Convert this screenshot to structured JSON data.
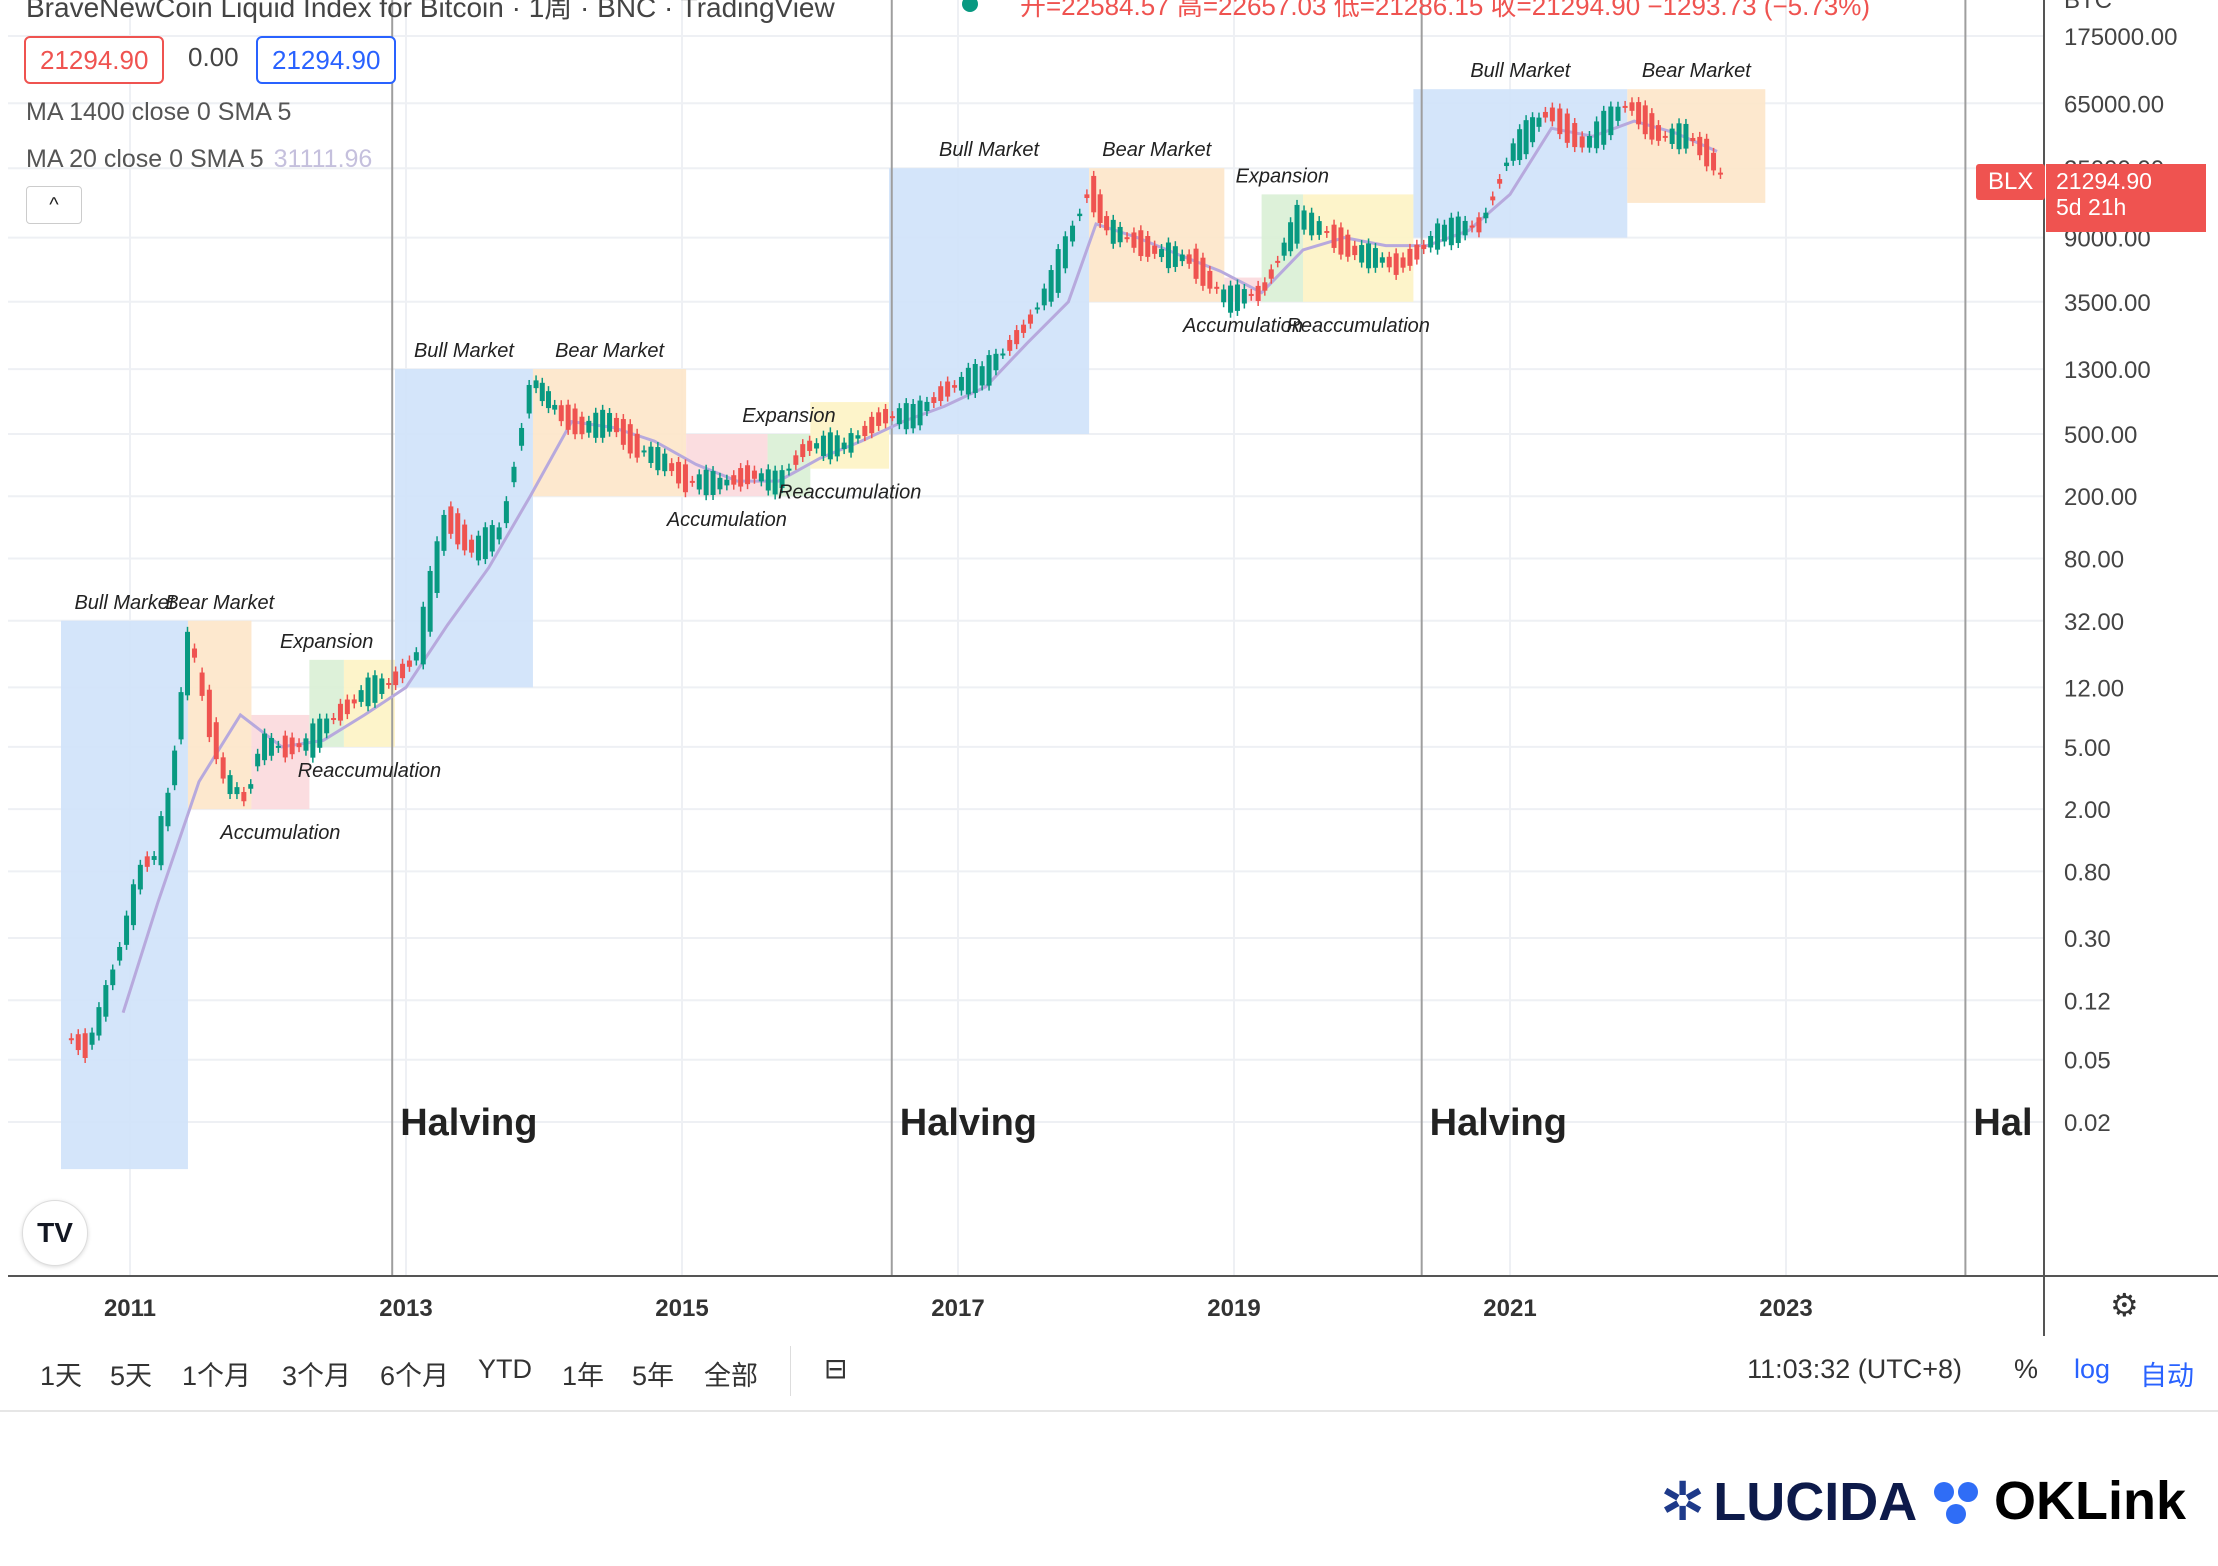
{
  "header": {
    "title": "BraveNewCoin Liquid Index for Bitcoin · 1周 · BNC · TradingView",
    "ohlc": "开=22584.57 高=22657.03 低=21286.15 收=21294.90 −1293.73 (−5.73%)",
    "price_red": "21294.90",
    "price_change": "0.00",
    "price_blue": "21294.90",
    "ma1_label": "MA 1400 close 0 SMA 5",
    "ma2_label": "MA 20 close 0 SMA 5",
    "ma2_value": "31111.96",
    "collapse_icon": "^"
  },
  "price_axis": {
    "currency": "BTC",
    "blx_label": "BLX",
    "last_price": "21294.90",
    "countdown": "5d 21h"
  },
  "chart_data": {
    "type": "line",
    "title": "BraveNewCoin Liquid Index for Bitcoin",
    "scale": "log",
    "ylim": [
      0.01,
      250000
    ],
    "y_ticks": [
      "175000.00",
      "65000.00",
      "25000.00",
      "9000.00",
      "3500.00",
      "1300.00",
      "500.00",
      "200.00",
      "80.00",
      "32.00",
      "12.00",
      "5.00",
      "2.00",
      "0.80",
      "0.30",
      "0.12",
      "0.05",
      "0.02"
    ],
    "x_ticks": [
      "2011",
      "2013",
      "2015",
      "2017",
      "2019",
      "2021",
      "2023"
    ],
    "series": [
      {
        "name": "",
        "x": [
          2010.55,
          2010.7,
          2010.8,
          2010.9,
          2011.0,
          2011.1,
          2011.2,
          2011.3,
          2011.44,
          2011.55,
          2011.7,
          2011.85,
          2011.95,
          2012.1,
          2012.3,
          2012.5,
          2012.7,
          2012.9,
          2013.1,
          2013.3,
          2013.5,
          2013.7,
          2013.92,
          2014.1,
          2014.3,
          2014.5,
          2014.7,
          2014.9,
          2015.05,
          2015.3,
          2015.5,
          2015.7,
          2015.9,
          2016.2,
          2016.45,
          2016.7,
          2016.9,
          2017.2,
          2017.5,
          2017.7,
          2017.96,
          2018.1,
          2018.3,
          2018.5,
          2018.7,
          2018.95,
          2019.2,
          2019.48,
          2019.7,
          2019.9,
          2020.2,
          2020.5,
          2020.8,
          2021.0,
          2021.28,
          2021.55,
          2021.86,
          2022.1,
          2022.3,
          2022.45,
          2022.55
        ],
        "values": [
          0.07,
          0.06,
          0.1,
          0.2,
          0.4,
          0.9,
          1.0,
          2.5,
          25,
          10,
          3,
          2.3,
          5,
          5,
          5.2,
          8,
          11,
          13,
          20,
          150,
          90,
          120,
          1100,
          700,
          550,
          600,
          400,
          320,
          250,
          240,
          280,
          240,
          420,
          420,
          650,
          650,
          950,
          1200,
          2500,
          4800,
          19000,
          10000,
          8500,
          7000,
          6500,
          3600,
          4000,
          12000,
          9500,
          7200,
          6000,
          9500,
          11000,
          30000,
          58000,
          35000,
          65000,
          40000,
          40000,
          30000,
          21294.9
        ]
      },
      {
        "name": "",
        "x": [
          2010.95,
          2011.2,
          2011.5,
          2011.8,
          2012.1,
          2012.4,
          2012.7,
          2013.0,
          2013.3,
          2013.6,
          2013.9,
          2014.2,
          2014.5,
          2014.8,
          2015.1,
          2015.4,
          2015.7,
          2016.0,
          2016.3,
          2016.6,
          2016.9,
          2017.2,
          2017.5,
          2017.8,
          2018.0,
          2018.3,
          2018.6,
          2018.9,
          2019.2,
          2019.5,
          2019.8,
          2020.1,
          2020.4,
          2020.7,
          2021.0,
          2021.3,
          2021.6,
          2021.9,
          2022.2,
          2022.5
        ],
        "values": [
          0.1,
          0.5,
          3,
          8,
          5,
          5.5,
          8,
          12,
          30,
          70,
          200,
          600,
          550,
          450,
          320,
          250,
          250,
          350,
          450,
          600,
          750,
          1000,
          1900,
          3500,
          11000,
          9000,
          7000,
          5500,
          4000,
          7500,
          9000,
          8000,
          8000,
          10000,
          17000,
          45000,
          40000,
          50000,
          42000,
          32000
        ]
      }
    ],
    "phases": [
      {
        "label": "Bull Market",
        "start": 2010.5,
        "end": 2011.42,
        "low": 0.01,
        "high": 32,
        "color": "#cfe2fa"
      },
      {
        "label": "Bear Market",
        "start": 2011.42,
        "end": 2011.88,
        "low": 2.0,
        "high": 32,
        "color": "#fde6c9"
      },
      {
        "label": "Accumulation",
        "start": 2011.88,
        "end": 2012.3,
        "low": 2.0,
        "high": 8,
        "color": "#fbd9dd"
      },
      {
        "label": "Expansion",
        "start": 2012.3,
        "end": 2012.55,
        "low": 5.0,
        "high": 18,
        "color": "#d9f0d5"
      },
      {
        "label": "Reaccumulation",
        "start": 2012.55,
        "end": 2012.92,
        "low": 5.0,
        "high": 18,
        "color": "#fdf3c4"
      },
      {
        "label": "Bull Market",
        "start": 2012.92,
        "end": 2013.92,
        "low": 12,
        "high": 1300,
        "color": "#cfe2fa"
      },
      {
        "label": "Bear Market",
        "start": 2013.92,
        "end": 2015.03,
        "low": 200,
        "high": 1300,
        "color": "#fde6c9"
      },
      {
        "label": "Accumulation",
        "start": 2015.03,
        "end": 2015.62,
        "low": 200,
        "high": 500,
        "color": "#fbd9dd"
      },
      {
        "label": "Expansion",
        "start": 2015.62,
        "end": 2015.93,
        "low": 200,
        "high": 500,
        "color": "#d9f0d5"
      },
      {
        "label": "Reaccumulation",
        "start": 2015.93,
        "end": 2016.5,
        "low": 300,
        "high": 800,
        "color": "#fdf3c4"
      },
      {
        "label": "Bull Market",
        "start": 2016.5,
        "end": 2017.95,
        "low": 500,
        "high": 25000,
        "color": "#cfe2fa"
      },
      {
        "label": "Bear Market",
        "start": 2017.95,
        "end": 2018.93,
        "low": 3500,
        "high": 25000,
        "color": "#fde6c9"
      },
      {
        "label": "Accumulation",
        "start": 2018.93,
        "end": 2019.2,
        "low": 3500,
        "high": 5000,
        "color": "#fbd9dd"
      },
      {
        "label": "Expansion",
        "start": 2019.2,
        "end": 2019.5,
        "low": 3500,
        "high": 17000,
        "color": "#d9f0d5"
      },
      {
        "label": "Reaccumulation",
        "start": 2019.5,
        "end": 2020.3,
        "low": 3500,
        "high": 17000,
        "color": "#fdf3c4"
      },
      {
        "label": "Bull Market",
        "start": 2020.3,
        "end": 2021.85,
        "low": 9000,
        "high": 80000,
        "color": "#cfe2fa"
      },
      {
        "label": "Bear Market",
        "start": 2021.85,
        "end": 2022.85,
        "low": 15000,
        "high": 80000,
        "color": "#fde6c9"
      }
    ],
    "halvings": [
      {
        "label": "Halving",
        "x": 2012.9
      },
      {
        "label": "Halving",
        "x": 2016.52
      },
      {
        "label": "Halving",
        "x": 2020.36
      },
      {
        "label": "Hal",
        "x": 2024.3
      }
    ],
    "grid": true,
    "legend": "none"
  },
  "toolbar": {
    "ranges": [
      "1天",
      "5天",
      "1个月",
      "3个月",
      "6个月",
      "YTD",
      "1年",
      "5年",
      "全部"
    ],
    "calendar_icon": "calendar-icon",
    "timestamp": "11:03:32 (UTC+8)",
    "pct": "%",
    "log": "log",
    "auto": "自动",
    "settings_icon": "gear-icon"
  },
  "logo": {
    "tv": "TV"
  },
  "branding": {
    "lucida": "LUCIDA",
    "oklink": "OKLink"
  },
  "colors": {
    "up": "#089981",
    "down": "#ef5350",
    "ma": "#b7a9dd",
    "accent": "#2962ff"
  }
}
